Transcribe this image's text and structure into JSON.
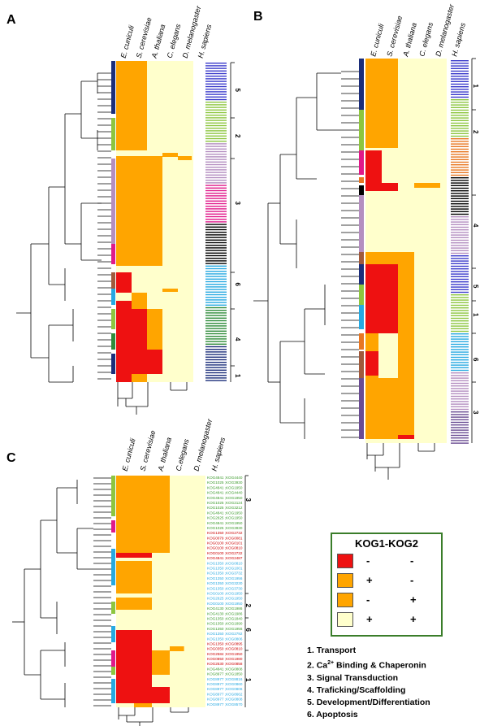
{
  "panels": [
    {
      "id": "A",
      "species": [
        "E. cuniculi",
        "S. cerevisiae",
        "A. thaliana",
        "C. elegans",
        "D. melanogaster",
        "H. sapiens"
      ],
      "cluster_labels": [
        "5",
        "2",
        "3",
        "6",
        "4",
        "1"
      ],
      "blocks": [
        {
          "rows": [
            0,
            0.14
          ],
          "pattern": "++"
        },
        {
          "rows": [
            0.14,
            0.24
          ],
          "pattern": "--"
        },
        {
          "rows": [
            0.26,
            0.46
          ],
          "pattern": "++a"
        },
        {
          "rows": [
            0.46,
            0.58
          ],
          "pattern": "++a"
        },
        {
          "rows": [
            0.6,
            0.66
          ],
          "pattern": "r"
        },
        {
          "rows": [
            0.66,
            0.78
          ],
          "pattern": "ra"
        },
        {
          "rows": [
            0.78,
            0.95
          ],
          "pattern": "rra"
        }
      ]
    },
    {
      "id": "B",
      "species": [
        "E. cuniculi",
        "S. cerevisiae",
        "A. thaliana",
        "C. elegans",
        "D. melanogaster",
        "H. sapiens"
      ],
      "cluster_labels": [
        "1",
        "2",
        "4",
        "5",
        "1",
        "6",
        "3"
      ]
    },
    {
      "id": "C",
      "species": [
        "E. cuniculi",
        "S. cerevisiae",
        "A. thaliana",
        "C.elegans",
        "D. melanogaster",
        "H. sapiens"
      ],
      "cluster_labels": [
        "3",
        "2",
        "6",
        "1"
      ],
      "row_labels": [
        "KOG4841 ;KOG4440",
        "KOG1025 ;KOG3930",
        "KOG4841 ;KOG1950",
        "KOG4841 ;KOG4440",
        "KOG4841 ;KOG1950",
        "KOG1025 ;KOG2124",
        "KOG1025 ;KOG3212",
        "KOG4841 ;KOG1950",
        "KOG2625 ;KOG1950",
        "KOG4841 ;KOG1950",
        "KOG1025 ;KOG3930",
        "KOG1350 ;KOG2732",
        "KOG0079 ;KOG0081",
        "KOG0100 ;KOG0101",
        "KOG0100 ;KOG0810",
        "KOG0100 ;KOG2732",
        "KOG4841 ;KOG2487",
        "KOG1350 ;KOG0810",
        "KOG1350 ;KOG1001",
        "KOG1350 ;KOG3732",
        "KOG1350 ;KOG1956",
        "KOG1350 ;KOG3230",
        "KOG1350 ;KOG3730",
        "KOG0100 ;KOG1950",
        "KOG2625 ;KOG1950",
        "KOG0100 ;KOG1950",
        "KOG4130 ;KOG1986",
        "KOG4130 ;KOG1986",
        "KOG1350 ;KOG1840",
        "KOG1350 ;KOG1890",
        "KOG1350 ;KOG1956",
        "KOG1350 ;KOG2792",
        "KOG1350 ;KOG0806",
        "KOG1350 ;KOG0895",
        "KOG0350 ;KOG0810",
        "KOG2584 ;KOG1950",
        "KOG0850 ;KOG1980",
        "KOG2530 ;KOG0858",
        "KOG4841 ;KOG0808",
        "KOG8977 ;KOG1850",
        "KOG8977 ;KOG8816",
        "KOG8977 ;KOG0860",
        "KOG8977 ;KOG0806",
        "KOG8977 ;KOG8662",
        "KOG8977 ;KOG0808",
        "KOG8977 ;KOG8570"
      ]
    }
  ],
  "panel_letters": {
    "A": "A",
    "B": "B",
    "C": "C"
  },
  "legend": {
    "title": "KOG1-KOG2",
    "rows": [
      {
        "color": "#ee1111",
        "k1": "-",
        "k2": "-"
      },
      {
        "color": "#ffa500",
        "k1": "+",
        "k2": "-"
      },
      {
        "color": "#ffa500",
        "k1": "-",
        "k2": "+"
      },
      {
        "color": "#ffffcc",
        "k1": "+",
        "k2": "+"
      }
    ]
  },
  "categories": [
    {
      "num": "1.",
      "label": "Transport"
    },
    {
      "num": "2.",
      "label": "Ca",
      "sup": "2+",
      "label2": " Binding & Chaperonin"
    },
    {
      "num": "3.",
      "label": "Signal Transduction"
    },
    {
      "num": "4.",
      "label": "Traficking/Scaffolding"
    },
    {
      "num": "5.",
      "label": "Development/Differentiation"
    },
    {
      "num": "6.",
      "label": "Apoptosis"
    }
  ],
  "colors": {
    "red": "#ee1111",
    "orange": "#ffa500",
    "pale": "#ffffcc",
    "border": "#3a7d2a"
  }
}
